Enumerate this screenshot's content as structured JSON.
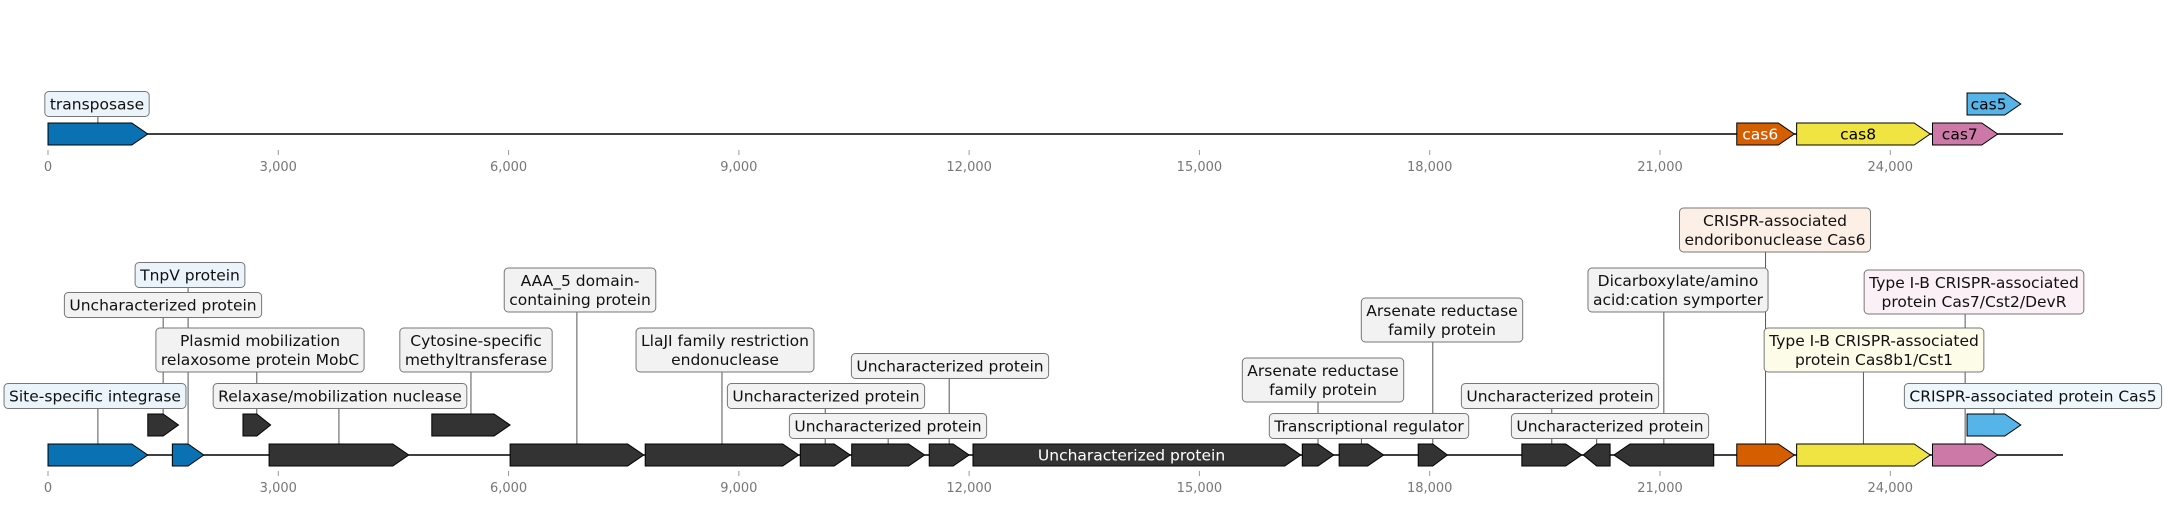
{
  "axis": {
    "ticks": [
      "0",
      "3,000",
      "6,000",
      "9,000",
      "12,000",
      "15,000",
      "18,000",
      "21,000",
      "24,000"
    ],
    "xlim": [
      0,
      26250
    ]
  },
  "tracks": [
    {
      "genes": [
        {
          "start": 0,
          "end": 1300,
          "strand": 1,
          "color": "#0a72b2",
          "label": "transposase",
          "label_pos": "above",
          "label_lines": [
            "transposase"
          ],
          "box_color": "#eaf4fa"
        },
        {
          "start": 22000,
          "end": 22750,
          "strand": 1,
          "color": "#d55e00",
          "label": "cas6",
          "label_pos": "inside",
          "label_lines": [
            "cas6"
          ],
          "text_color": "#ffffff"
        },
        {
          "start": 22780,
          "end": 24520,
          "strand": 1,
          "color": "#f0e442",
          "label": "cas8",
          "label_pos": "inside",
          "label_lines": [
            "cas8"
          ],
          "text_color": "#000000"
        },
        {
          "start": 24550,
          "end": 25400,
          "strand": 1,
          "color": "#cc79a7",
          "label": "cas7",
          "label_pos": "inside",
          "label_lines": [
            "cas7"
          ],
          "text_color": "#000000"
        },
        {
          "start": 25000,
          "end": 25700,
          "strand": 1,
          "color": "#56b4e9",
          "label": "cas5",
          "label_pos": "inside",
          "label_lines": [
            "cas5"
          ],
          "text_color": "#000000",
          "raised": true
        }
      ]
    },
    {
      "genes": [
        {
          "start": 0,
          "end": 1300,
          "strand": 1,
          "color": "#0a72b2",
          "label": "Site-specific integrase",
          "label_pos": "above",
          "label_lines": [
            "Site-specific integrase"
          ],
          "box_color": "#eaf4fa"
        },
        {
          "start": 1300,
          "end": 1700,
          "strand": 1,
          "color": "#333333",
          "raised": true,
          "label": "Uncharacterized protein",
          "label_pos": "above",
          "label_lines": [
            "Uncharacterized protein"
          ],
          "box_color": "#f2f2f2"
        },
        {
          "start": 1620,
          "end": 2030,
          "strand": 1,
          "color": "#0a72b2",
          "label": "TnpV protein",
          "label_pos": "above",
          "label_lines": [
            "TnpV protein"
          ],
          "box_color": "#eaf4fa"
        },
        {
          "start": 2540,
          "end": 2900,
          "strand": 1,
          "color": "#333333",
          "raised": true,
          "label": "Plasmid mobilization relaxosome protein MobC",
          "label_pos": "above",
          "label_lines": [
            "Plasmid mobilization",
            "relaxosome protein MobC"
          ],
          "box_color": "#f2f2f2"
        },
        {
          "start": 2880,
          "end": 4700,
          "strand": 1,
          "color": "#333333",
          "label": "Relaxase/mobilization nuclease",
          "label_pos": "above",
          "label_lines": [
            "Relaxase/mobilization nuclease"
          ],
          "box_color": "#f2f2f2"
        },
        {
          "start": 5000,
          "end": 6020,
          "strand": 1,
          "color": "#333333",
          "raised": true,
          "label": "Cytosine-specific methyltransferase",
          "label_pos": "above",
          "label_lines": [
            "Cytosine-specific",
            "methyltransferase"
          ],
          "box_color": "#f2f2f2"
        },
        {
          "start": 6020,
          "end": 7760,
          "strand": 1,
          "color": "#333333",
          "label": "AAA_5 domain-containing protein",
          "label_pos": "above",
          "label_lines": [
            "AAA_5 domain-",
            "containing protein"
          ],
          "box_color": "#f2f2f2"
        },
        {
          "start": 7780,
          "end": 9780,
          "strand": 1,
          "color": "#333333",
          "label": "LlaJI family restriction endonuclease",
          "label_pos": "above",
          "label_lines": [
            "LlaJI family restriction",
            "endonuclease"
          ],
          "box_color": "#f2f2f2"
        },
        {
          "start": 9800,
          "end": 10450,
          "strand": 1,
          "color": "#333333",
          "label": "Uncharacterized protein",
          "label_pos": "above",
          "label_lines": [
            "Uncharacterized protein"
          ],
          "box_color": "#f2f2f2"
        },
        {
          "start": 10470,
          "end": 11420,
          "strand": 1,
          "color": "#333333",
          "label": "Uncharacterized protein",
          "label_pos": "above",
          "label_lines": [
            "Uncharacterized protein"
          ],
          "box_color": "#f2f2f2"
        },
        {
          "start": 11480,
          "end": 12000,
          "strand": 1,
          "color": "#333333",
          "label": "Uncharacterized protein",
          "label_pos": "above",
          "label_lines": [
            "Uncharacterized protein"
          ],
          "box_color": "#f2f2f2"
        },
        {
          "start": 12050,
          "end": 16320,
          "strand": 1,
          "color": "#333333",
          "label": "Uncharacterized protein",
          "label_pos": "inside",
          "label_lines": [
            "Uncharacterized protein"
          ],
          "text_color": "#ffffff"
        },
        {
          "start": 16340,
          "end": 16750,
          "strand": 1,
          "color": "#333333",
          "label": "Arsenate reductase family protein",
          "label_pos": "above",
          "label_lines": [
            "Arsenate reductase",
            "family protein"
          ],
          "box_color": "#f2f2f2"
        },
        {
          "start": 16820,
          "end": 17400,
          "strand": 1,
          "color": "#333333",
          "label": "Transcriptional regulator",
          "label_pos": "above",
          "label_lines": [
            "Transcriptional regulator"
          ],
          "box_color": "#f2f2f2"
        },
        {
          "start": 17850,
          "end": 18230,
          "strand": 1,
          "color": "#333333",
          "label": "Arsenate reductase family protein",
          "label_pos": "above",
          "label_lines": [
            "Arsenate reductase",
            "family protein"
          ],
          "box_color": "#f2f2f2"
        },
        {
          "start": 19200,
          "end": 19980,
          "strand": 1,
          "color": "#333333",
          "label": "Uncharacterized protein",
          "label_pos": "above",
          "label_lines": [
            "Uncharacterized protein"
          ],
          "box_color": "#f2f2f2"
        },
        {
          "start": 20000,
          "end": 20350,
          "strand": -1,
          "color": "#333333",
          "label": "Uncharacterized protein",
          "label_pos": "above",
          "label_lines": [
            "Uncharacterized protein"
          ],
          "box_color": "#f2f2f2"
        },
        {
          "start": 20400,
          "end": 21700,
          "strand": -1,
          "color": "#333333",
          "label": "Dicarboxylate/amino acid:cation symporter",
          "label_pos": "above",
          "label_lines": [
            "Dicarboxylate/amino",
            "acid:cation symporter"
          ],
          "box_color": "#f2f2f2"
        },
        {
          "start": 22000,
          "end": 22750,
          "strand": 1,
          "color": "#d55e00",
          "label": "CRISPR-associated endoribonuclease Cas6",
          "label_pos": "above",
          "label_lines": [
            "CRISPR-associated",
            "endoribonuclease Cas6"
          ],
          "box_color": "#fcefe5"
        },
        {
          "start": 22780,
          "end": 24520,
          "strand": 1,
          "color": "#f0e442",
          "label": "Type I-B CRISPR-associated protein Cas8b1/Cst1",
          "label_pos": "above",
          "label_lines": [
            "Type I-B CRISPR-associated",
            "protein Cas8b1/Cst1"
          ],
          "box_color": "#fdfce8"
        },
        {
          "start": 24550,
          "end": 25400,
          "strand": 1,
          "color": "#cc79a7",
          "label": "Type I-B CRISPR-associated protein Cas7/Cst2/DevR",
          "label_pos": "above",
          "label_lines": [
            "Type I-B CRISPR-associated",
            "protein Cas7/Cst2/DevR"
          ],
          "box_color": "#fbf0f6"
        },
        {
          "start": 25000,
          "end": 25700,
          "strand": 1,
          "color": "#56b4e9",
          "raised": true,
          "label": "CRISPR-associated protein Cas5",
          "label_pos": "above",
          "label_lines": [
            "CRISPR-associated protein Cas5"
          ],
          "box_color": "#eef7fc"
        }
      ]
    }
  ]
}
